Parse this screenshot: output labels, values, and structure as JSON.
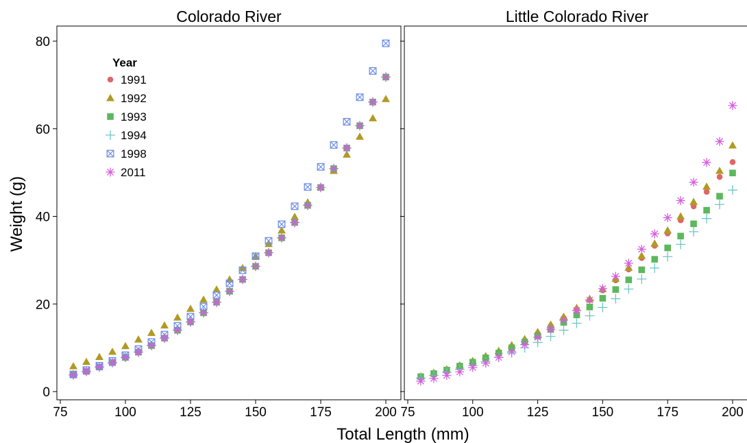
{
  "chart_data": [
    {
      "type": "scatter",
      "title": "Colorado River",
      "xlabel": "Total Length (mm)",
      "ylabel": "Weight (g)",
      "xlim": [
        75,
        200
      ],
      "ylim": [
        0,
        83
      ],
      "xticks": [
        75,
        100,
        125,
        150,
        175,
        200
      ],
      "yticks": [
        0,
        20,
        40,
        60,
        80
      ],
      "grid": false,
      "legend": {
        "title": "Year",
        "position": "top-left",
        "entries": [
          "1991",
          "1992",
          "1993",
          "1994",
          "1998",
          "2011"
        ]
      },
      "x": [
        80,
        85,
        90,
        95,
        100,
        105,
        110,
        115,
        120,
        125,
        130,
        135,
        140,
        145,
        150,
        155,
        160,
        165,
        170,
        175,
        180,
        185,
        190,
        195,
        200
      ],
      "series": [
        {
          "name": "1991",
          "y": [
            3.8,
            4.6,
            5.6,
            6.6,
            7.8,
            9.0,
            10.5,
            12.2,
            14.0,
            15.9,
            18.0,
            20.4,
            22.9,
            25.6,
            28.6,
            31.7,
            35.1,
            38.6,
            42.5,
            46.6,
            50.9,
            55.6,
            60.7,
            66.1,
            71.8
          ]
        },
        {
          "name": "1992",
          "y": [
            5.8,
            6.8,
            7.9,
            9.1,
            10.4,
            11.9,
            13.4,
            15.1,
            16.9,
            18.9,
            21.0,
            23.3,
            25.6,
            28.2,
            30.9,
            33.7,
            36.8,
            39.9,
            43.2,
            46.7,
            50.4,
            54.1,
            58.2,
            62.4,
            66.8
          ]
        },
        {
          "name": "1993",
          "y": [
            3.8,
            4.6,
            5.6,
            6.6,
            7.8,
            9.0,
            10.5,
            12.2,
            14.0,
            15.9,
            18.0,
            20.4,
            22.9,
            25.6,
            28.6,
            31.7,
            35.1,
            38.6,
            42.5,
            46.6,
            50.9,
            55.6,
            60.7,
            66.1,
            71.8
          ]
        },
        {
          "name": "1994",
          "y": [
            3.8,
            4.6,
            5.6,
            6.6,
            7.8,
            9.0,
            10.5,
            12.2,
            14.0,
            15.9,
            18.0,
            20.4,
            22.9,
            25.6,
            28.6,
            31.7,
            35.1,
            38.6,
            42.5,
            46.6,
            50.9,
            55.6,
            60.7,
            66.1,
            71.8
          ]
        },
        {
          "name": "1998",
          "y": [
            3.9,
            4.9,
            5.9,
            7.0,
            8.3,
            9.7,
            11.3,
            13.0,
            15.0,
            17.1,
            19.4,
            22.0,
            24.7,
            27.7,
            30.9,
            34.4,
            38.2,
            42.3,
            46.7,
            51.3,
            56.3,
            61.6,
            67.2,
            73.2,
            79.5
          ]
        },
        {
          "name": "2011",
          "y": [
            3.8,
            4.6,
            5.6,
            6.6,
            7.8,
            9.0,
            10.5,
            12.2,
            14.0,
            15.9,
            18.0,
            20.4,
            22.9,
            25.6,
            28.6,
            31.7,
            35.1,
            38.6,
            42.5,
            46.6,
            50.9,
            55.6,
            60.7,
            66.1,
            71.8
          ]
        }
      ]
    },
    {
      "type": "scatter",
      "title": "Little Colorado River",
      "xlabel": "Total Length (mm)",
      "ylabel": "Weight (g)",
      "xlim": [
        75,
        200
      ],
      "ylim": [
        0,
        83
      ],
      "xticks": [
        75,
        100,
        125,
        150,
        175,
        200
      ],
      "yticks": [
        0,
        20,
        40,
        60,
        80
      ],
      "grid": false,
      "x": [
        80,
        85,
        90,
        95,
        100,
        105,
        110,
        115,
        120,
        125,
        130,
        135,
        140,
        145,
        150,
        155,
        160,
        165,
        170,
        175,
        180,
        185,
        190,
        195,
        200
      ],
      "series": [
        {
          "name": "1991",
          "y": [
            3.2,
            3.9,
            4.7,
            5.6,
            6.6,
            7.7,
            8.9,
            10.2,
            11.7,
            13.3,
            15.0,
            16.8,
            18.8,
            20.9,
            23.1,
            25.4,
            27.9,
            30.5,
            33.3,
            36.1,
            39.1,
            42.3,
            45.6,
            49.0,
            52.4
          ]
        },
        {
          "name": "1992",
          "y": [
            3.5,
            4.3,
            5.1,
            6.0,
            7.0,
            8.1,
            9.3,
            10.6,
            12.0,
            13.6,
            15.3,
            17.1,
            19.1,
            21.2,
            23.4,
            25.8,
            28.3,
            31.0,
            33.8,
            36.8,
            40.0,
            43.3,
            46.8,
            50.4,
            56.2
          ]
        },
        {
          "name": "1993",
          "y": [
            3.4,
            4.1,
            4.9,
            5.8,
            6.7,
            7.7,
            8.8,
            10.0,
            11.3,
            12.7,
            14.2,
            15.8,
            17.5,
            19.3,
            21.3,
            23.3,
            25.5,
            27.8,
            30.2,
            32.8,
            35.5,
            38.3,
            41.4,
            44.6,
            49.9
          ]
        },
        {
          "name": "1994",
          "y": [
            3.1,
            3.7,
            4.4,
            5.1,
            5.9,
            6.8,
            7.8,
            8.8,
            10.0,
            11.2,
            12.6,
            14.0,
            15.6,
            17.3,
            19.2,
            21.2,
            23.4,
            25.7,
            28.2,
            30.8,
            33.6,
            36.5,
            39.5,
            42.7,
            46.0
          ]
        },
        {
          "name": "2011",
          "y": [
            2.4,
            3.0,
            3.7,
            4.5,
            5.5,
            6.5,
            7.8,
            9.1,
            10.7,
            12.4,
            14.2,
            16.3,
            18.5,
            20.9,
            23.5,
            26.3,
            29.3,
            32.5,
            36.0,
            39.7,
            43.6,
            47.8,
            52.3,
            57.1,
            65.3
          ]
        }
      ]
    }
  ],
  "colors": {
    "1991": "#e06666",
    "1992": "#b09a26",
    "1993": "#5cb85c",
    "1994": "#6fc6c6",
    "1998": "#6d8fe8",
    "2011": "#d65ce0"
  },
  "markers": {
    "1991": "circle",
    "1992": "triangle",
    "1993": "square",
    "1994": "plus",
    "1998": "boxed-x",
    "2011": "asterisk"
  }
}
